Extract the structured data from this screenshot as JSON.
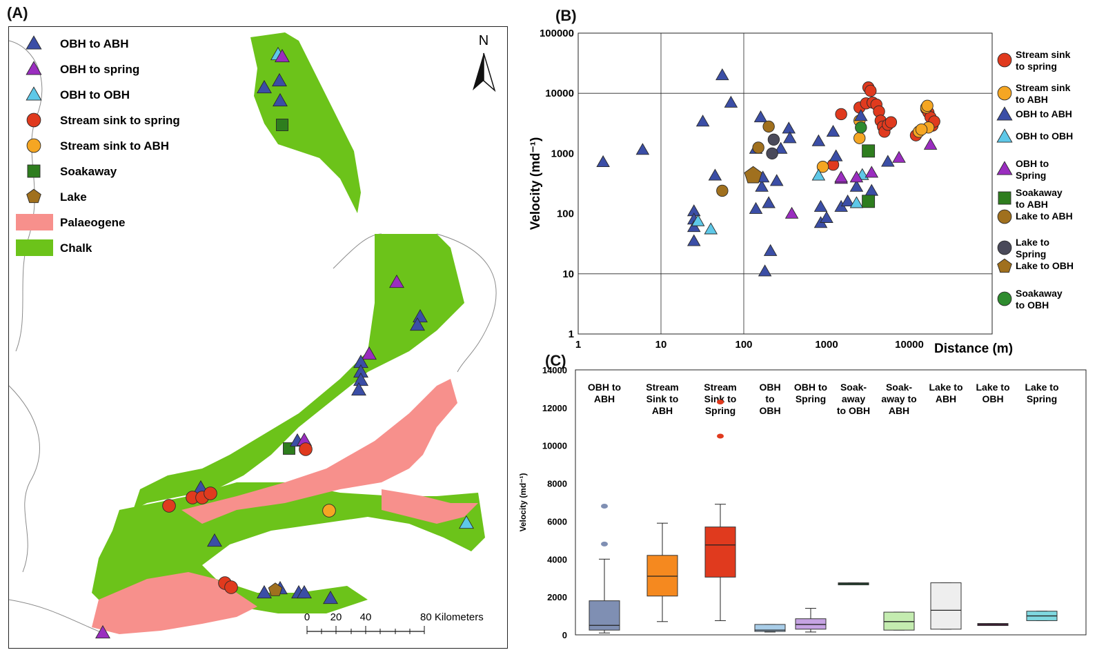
{
  "panels": {
    "a": "(A)",
    "b": "(B)",
    "c": "(C)"
  },
  "map": {
    "north_label": "N",
    "legend": [
      {
        "label": "OBH to ABH",
        "marker": "triangle",
        "color": "#3b4ea6"
      },
      {
        "label": "OBH to spring",
        "marker": "triangle",
        "color": "#9a2dbf"
      },
      {
        "label": "OBH to OBH",
        "marker": "triangle",
        "color": "#5ec8e8"
      },
      {
        "label": "Stream sink to spring",
        "marker": "circle",
        "color": "#e03a1e"
      },
      {
        "label": "Stream sink to ABH",
        "marker": "circle",
        "color": "#f5a623"
      },
      {
        "label": "Soakaway",
        "marker": "square",
        "color": "#2e7d1e"
      },
      {
        "label": "Lake",
        "marker": "pentagon",
        "color": "#a0701e"
      },
      {
        "label": "Palaeogene",
        "marker": "patch",
        "color": "#f7908c"
      },
      {
        "label": "Chalk",
        "marker": "patch",
        "color": "#6cc31a"
      }
    ],
    "scale": {
      "ticks": [
        "0",
        "20",
        "40",
        "80 Kilometers"
      ]
    },
    "colors": {
      "chalk": "#6cc31a",
      "palaeogene": "#f7908c",
      "coast": "#8a8a8a"
    }
  },
  "chart_data": [
    {
      "type": "scatter",
      "xlabel": "Distance (m)",
      "ylabel": "Velocity (md⁻¹)",
      "xscale": "log",
      "yscale": "log",
      "xlim": [
        1,
        100000
      ],
      "ylim": [
        1,
        100000
      ],
      "xticks": [
        "1",
        "10",
        "100",
        "1000",
        "10000"
      ],
      "yticks": [
        "1",
        "10",
        "100",
        "1000",
        "10000",
        "100000"
      ],
      "grid": "major",
      "legend_position": "right",
      "series": [
        {
          "name": "Stream sink to spring",
          "marker": "circle",
          "color": "#e03a1e",
          "points": [
            [
              1500,
              4500
            ],
            [
              2500,
              5800
            ],
            [
              3000,
              6800
            ],
            [
              3200,
              12500
            ],
            [
              3400,
              11000
            ],
            [
              3600,
              7000
            ],
            [
              4000,
              6500
            ],
            [
              4300,
              5000
            ],
            [
              4500,
              3500
            ],
            [
              4800,
              2800
            ],
            [
              5000,
              2300
            ],
            [
              5500,
              3000
            ],
            [
              6000,
              3300
            ],
            [
              12000,
              2000
            ],
            [
              16000,
              5500
            ],
            [
              17000,
              4800
            ],
            [
              18000,
              4000
            ],
            [
              19000,
              2900
            ],
            [
              20000,
              3400
            ],
            [
              1200,
              650
            ]
          ]
        },
        {
          "name": "Stream sink to ABH",
          "marker": "circle",
          "color": "#f5a623",
          "points": [
            [
              900,
              600
            ],
            [
              2500,
              3500
            ],
            [
              2500,
              1800
            ],
            [
              13000,
              2300
            ],
            [
              16000,
              5800
            ],
            [
              17000,
              2700
            ],
            [
              16500,
              6200
            ],
            [
              14000,
              2500
            ]
          ]
        },
        {
          "name": "OBH to ABH",
          "marker": "triangle",
          "color": "#3b4ea6",
          "points": [
            [
              2,
              720
            ],
            [
              6,
              1150
            ],
            [
              25,
              110
            ],
            [
              25,
              80
            ],
            [
              25,
              60
            ],
            [
              25,
              35
            ],
            [
              32,
              3400
            ],
            [
              45,
              430
            ],
            [
              55,
              20000
            ],
            [
              70,
              7000
            ],
            [
              140,
              1200
            ],
            [
              160,
              4000
            ],
            [
              165,
              280
            ],
            [
              170,
              400
            ],
            [
              180,
              11
            ],
            [
              200,
              150
            ],
            [
              210,
              24
            ],
            [
              250,
              350
            ],
            [
              280,
              1200
            ],
            [
              350,
              2600
            ],
            [
              360,
              1800
            ],
            [
              140,
              120
            ],
            [
              800,
              1600
            ],
            [
              850,
              130
            ],
            [
              850,
              70
            ],
            [
              1000,
              85
            ],
            [
              1200,
              2300
            ],
            [
              1300,
              900
            ],
            [
              1500,
              130
            ],
            [
              1800,
              160
            ],
            [
              2300,
              280
            ],
            [
              2600,
              4200
            ],
            [
              3500,
              240
            ],
            [
              5500,
              730
            ]
          ]
        },
        {
          "name": "OBH to OBH",
          "marker": "triangle",
          "color": "#5ec8e8",
          "points": [
            [
              28,
              75
            ],
            [
              40,
              55
            ],
            [
              800,
              430
            ],
            [
              2300,
              150
            ],
            [
              2700,
              440
            ]
          ]
        },
        {
          "name": "OBH to Spring",
          "marker": "triangle",
          "color": "#9a2dbf",
          "points": [
            [
              380,
              100
            ],
            [
              1500,
              380
            ],
            [
              1500,
              400
            ],
            [
              2300,
              400
            ],
            [
              3500,
              480
            ],
            [
              7500,
              850
            ],
            [
              18000,
              1400
            ]
          ]
        },
        {
          "name": "Soakaway to ABH",
          "marker": "square",
          "color": "#2e7d1e",
          "points": [
            [
              3200,
              1100
            ],
            [
              3200,
              160
            ]
          ]
        },
        {
          "name": "Lake to ABH",
          "marker": "circle",
          "color": "#a0701e",
          "points": [
            [
              55,
              240
            ],
            [
              150,
              1250
            ],
            [
              200,
              2800
            ]
          ]
        },
        {
          "name": "Lake to Spring",
          "marker": "circle",
          "color": "#4a4a5a",
          "points": [
            [
              230,
              1700
            ],
            [
              220,
              1000
            ]
          ]
        },
        {
          "name": "Lake to OBH",
          "marker": "pentagon",
          "color": "#a0701e",
          "points": [
            [
              130,
              430
            ]
          ]
        },
        {
          "name": "Soakaway to OBH",
          "marker": "circle",
          "color": "#2e8b2e",
          "points": [
            [
              2600,
              2700
            ]
          ]
        }
      ]
    },
    {
      "type": "box",
      "ylabel": "Velocity (md⁻¹)",
      "ylim": [
        0,
        14000
      ],
      "yticks": [
        "0",
        "2000",
        "4000",
        "6000",
        "8000",
        "10000",
        "12000",
        "14000"
      ],
      "categories": [
        {
          "label": "OBH to ABH",
          "lines": [
            "OBH to",
            "ABH"
          ],
          "color": "#7f8fb3",
          "min": 100,
          "q1": 250,
          "median": 500,
          "q3": 1800,
          "max": 4000,
          "outliers": [
            4800,
            6800
          ]
        },
        {
          "label": "Stream Sink to ABH",
          "lines": [
            "Stream",
            "Sink to",
            "ABH"
          ],
          "color": "#f5891f",
          "min": 700,
          "q1": 2050,
          "median": 3100,
          "q3": 4200,
          "max": 5900,
          "outliers": []
        },
        {
          "label": "Stream Sink to Spring",
          "lines": [
            "Stream",
            "Sink to",
            "Spring"
          ],
          "color": "#e03a1e",
          "min": 750,
          "q1": 3050,
          "median": 4750,
          "q3": 5700,
          "max": 6900,
          "outliers": [
            10500,
            12300
          ]
        },
        {
          "label": "OBH to OBH",
          "lines": [
            "OBH",
            "to",
            "OBH"
          ],
          "color": "#a9cde8",
          "min": 150,
          "q1": 180,
          "median": 250,
          "q3": 550,
          "max": 550,
          "outliers": []
        },
        {
          "label": "OBH to Spring",
          "lines": [
            "OBH to",
            "Spring"
          ],
          "color": "#c6a3e3",
          "min": 150,
          "q1": 300,
          "median": 550,
          "q3": 850,
          "max": 1400,
          "outliers": []
        },
        {
          "label": "Soak-away to OBH",
          "lines": [
            "Soak-",
            "away",
            "to OBH"
          ],
          "color": "#2e7d4e",
          "min": 2650,
          "q1": 2650,
          "median": 2700,
          "q3": 2750,
          "max": 2750,
          "outliers": []
        },
        {
          "label": "Soak-away to ABH",
          "lines": [
            "Soak-",
            "away to",
            "ABH"
          ],
          "color": "#c4ecb0",
          "min": 250,
          "q1": 250,
          "median": 700,
          "q3": 1200,
          "max": 1200,
          "outliers": []
        },
        {
          "label": "Lake to ABH",
          "lines": [
            "Lake to",
            "ABH"
          ],
          "color": "#eeeeee",
          "min": 300,
          "q1": 300,
          "median": 1300,
          "q3": 2750,
          "max": 2750,
          "outliers": []
        },
        {
          "label": "Lake to OBH",
          "lines": [
            "Lake to",
            "OBH"
          ],
          "color": "#7a1f5f",
          "min": 500,
          "q1": 500,
          "median": 550,
          "q3": 600,
          "max": 600,
          "outliers": []
        },
        {
          "label": "Lake to Spring",
          "lines": [
            "Lake to",
            "Spring"
          ],
          "color": "#7fd8e0",
          "min": 750,
          "q1": 750,
          "median": 1000,
          "q3": 1250,
          "max": 1250,
          "outliers": []
        }
      ]
    }
  ]
}
